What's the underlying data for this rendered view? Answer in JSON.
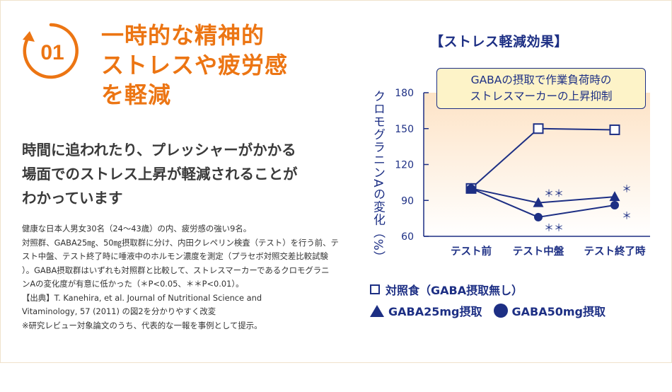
{
  "header": {
    "number": "01",
    "title_lines": [
      "一時的な精神的",
      "ストレスや疲労感",
      "を軽減"
    ]
  },
  "lead": {
    "lines": [
      "時間に追われたり、プレッシャーがかかる",
      "場面でのストレス上昇が軽減されることが",
      "わかっています"
    ]
  },
  "notes": {
    "lines": [
      "健康な日本人男女30名（24～43歳）の内、疲労感の強い9名。",
      "対照群、GABA25㎎、50㎎摂取群に分け、内田クレペリン検査（テスト）を行う前、テ",
      "スト中盤、テスト終了時に唾液中のホルモン濃度を測定（プラセボ対照交差比較試験",
      "）。GABA摂取群はいずれも対照群と比較して、ストレスマーカーであるクロモグラニ",
      "ンAの変化度が有意に低かった（＊P<0.05、＊＊P<0.01）。",
      "【出典】T. Kanehira, et al. Journal of Nutritional Science and",
      "Vitaminology, 57 (2011) の図2を分かりやすく改変",
      "※研究レビュー対象論文のうち、代表的な一報を事例として提示。"
    ]
  },
  "colors": {
    "accent": "#ec7513",
    "navy": "#1d2f84"
  },
  "chart_data": {
    "type": "line",
    "title": "【ストレス軽減効果】",
    "annotation": [
      "GABAの摂取で作業負荷時の",
      "ストレスマーカーの上昇抑制"
    ],
    "ylabel": "クロモグラニンAの変化（%）",
    "xlabel": "",
    "categories": [
      "テスト前",
      "テスト中盤",
      "テスト終了時"
    ],
    "ylim": [
      60,
      180
    ],
    "yticks": [
      60,
      90,
      120,
      150,
      180
    ],
    "grid": false,
    "legend_position": "bottom",
    "series": [
      {
        "name": "対照食（GABA摂取無し）",
        "marker": "square",
        "values": [
          100,
          150,
          149
        ],
        "sig": [
          "",
          "",
          ""
        ]
      },
      {
        "name": "GABA25mg摂取",
        "marker": "triangle",
        "values": [
          100,
          88,
          93
        ],
        "sig": [
          "",
          "＊＊",
          "＊"
        ]
      },
      {
        "name": "GABA50mg摂取",
        "marker": "circle",
        "values": [
          100,
          76,
          86
        ],
        "sig": [
          "",
          "＊＊",
          "＊"
        ]
      }
    ]
  }
}
